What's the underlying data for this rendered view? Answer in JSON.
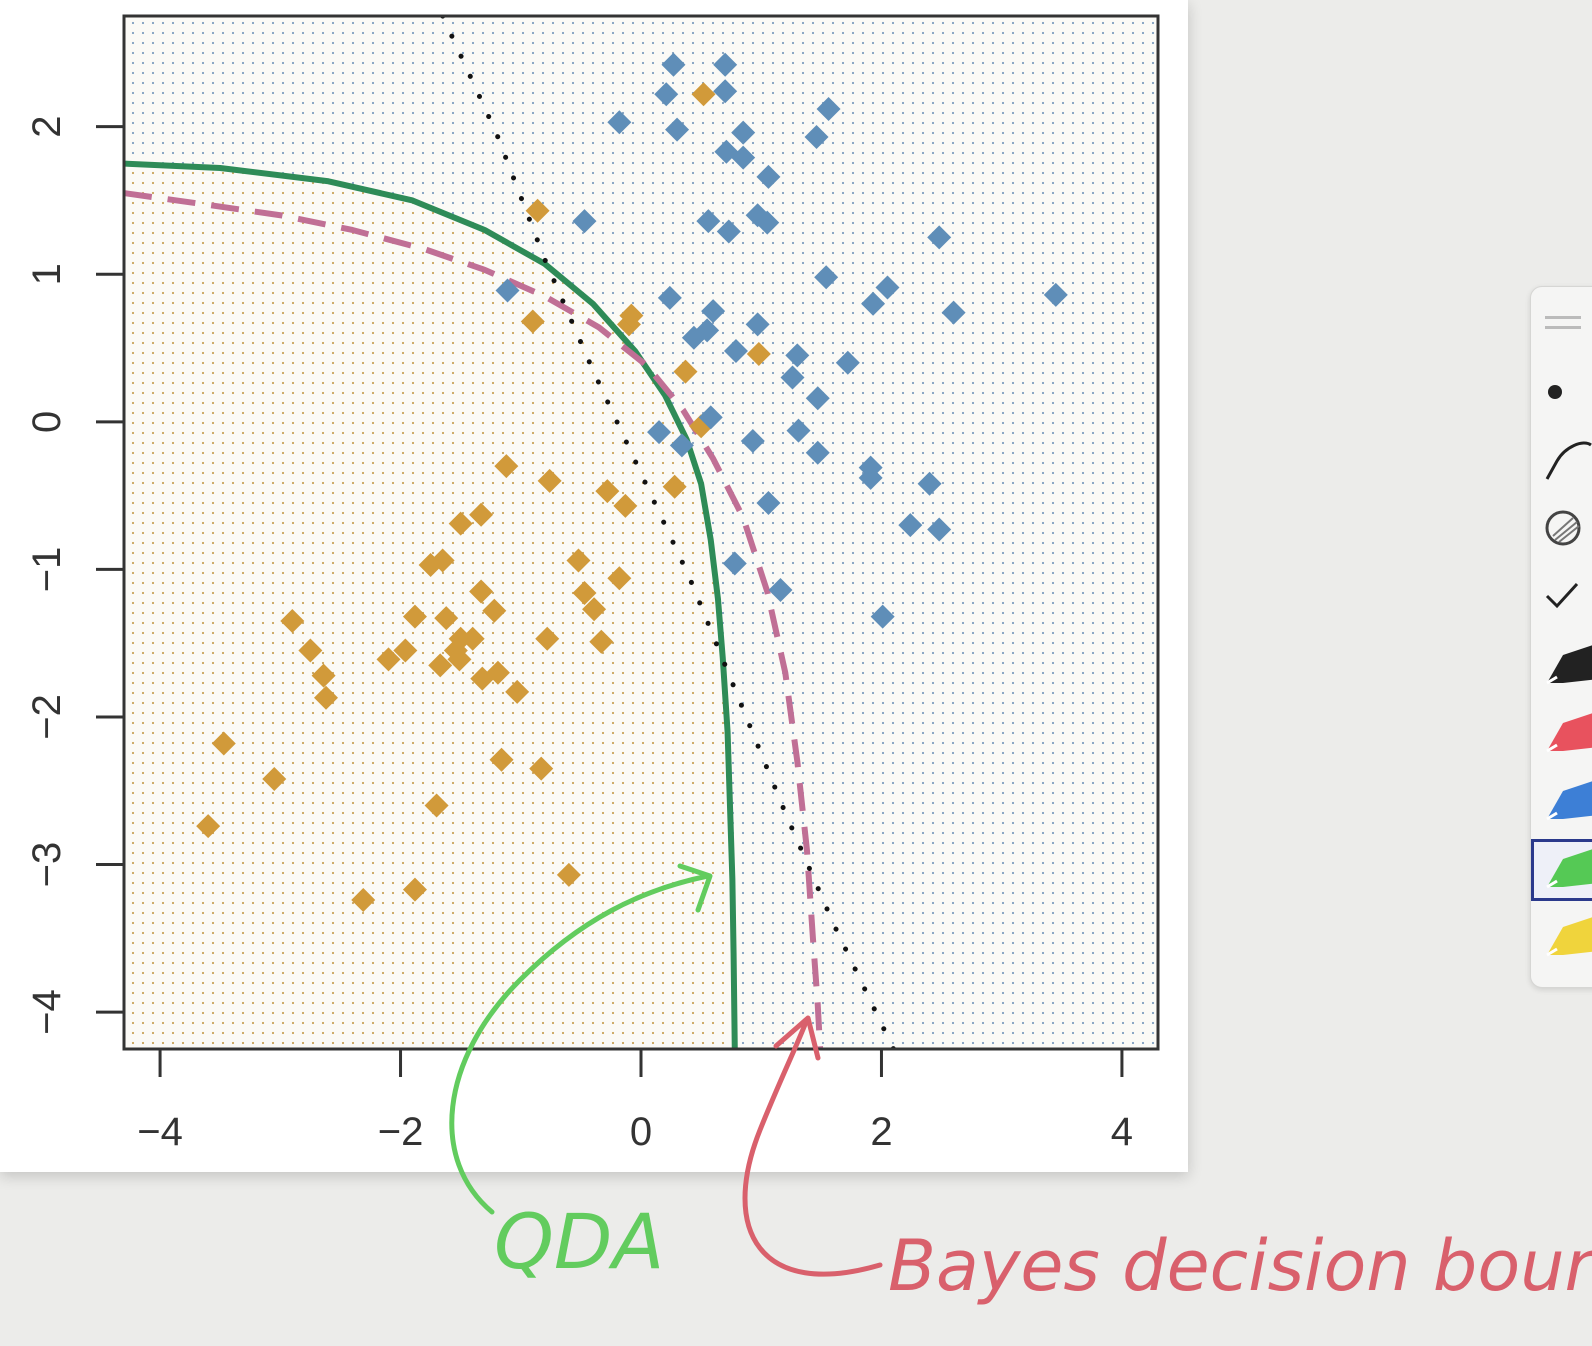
{
  "chart_data": {
    "type": "scatter",
    "title": "",
    "xlabel": "",
    "ylabel": "",
    "xlim": [
      -4.3,
      4.3
    ],
    "ylim": [
      -4.25,
      2.75
    ],
    "x_ticks": [
      -4,
      -2,
      0,
      2,
      4
    ],
    "x_tick_labels": [
      "−4",
      "−2",
      "0",
      "2",
      "4"
    ],
    "y_ticks": [
      -4,
      -3,
      -2,
      -1,
      0,
      1,
      2
    ],
    "y_tick_labels": [
      "−4",
      "−3",
      "−2",
      "−1",
      "0",
      "1",
      "2"
    ],
    "grid": false,
    "background_dot_grid": true,
    "series": [
      {
        "color": "#d19a3a",
        "marker": "diamond",
        "points": [
          [
            0.52,
            2.22
          ],
          [
            -0.86,
            1.43
          ],
          [
            -0.9,
            0.68
          ],
          [
            -0.1,
            0.66
          ],
          [
            -0.08,
            0.72
          ],
          [
            0.98,
            0.46
          ],
          [
            0.37,
            0.34
          ],
          [
            0.5,
            -0.03
          ],
          [
            -1.12,
            -0.3
          ],
          [
            -0.76,
            -0.4
          ],
          [
            -0.28,
            -0.47
          ],
          [
            0.28,
            -0.44
          ],
          [
            -0.13,
            -0.57
          ],
          [
            -1.5,
            -0.69
          ],
          [
            -1.33,
            -0.63
          ],
          [
            -1.75,
            -0.97
          ],
          [
            -1.65,
            -0.94
          ],
          [
            -0.52,
            -0.94
          ],
          [
            -0.18,
            -1.06
          ],
          [
            -0.47,
            -1.16
          ],
          [
            -1.33,
            -1.15
          ],
          [
            -0.39,
            -1.27
          ],
          [
            -1.88,
            -1.32
          ],
          [
            -1.62,
            -1.33
          ],
          [
            -1.22,
            -1.28
          ],
          [
            -2.9,
            -1.35
          ],
          [
            -1.5,
            -1.47
          ],
          [
            -1.4,
            -1.47
          ],
          [
            -1.54,
            -1.55
          ],
          [
            -2.75,
            -1.55
          ],
          [
            -1.96,
            -1.55
          ],
          [
            -0.78,
            -1.47
          ],
          [
            -0.33,
            -1.49
          ],
          [
            -2.1,
            -1.61
          ],
          [
            -1.51,
            -1.61
          ],
          [
            -1.67,
            -1.65
          ],
          [
            -2.64,
            -1.72
          ],
          [
            -1.19,
            -1.7
          ],
          [
            -1.32,
            -1.74
          ],
          [
            -2.62,
            -1.87
          ],
          [
            -1.03,
            -1.83
          ],
          [
            -3.47,
            -2.18
          ],
          [
            -1.16,
            -2.29
          ],
          [
            -0.83,
            -2.35
          ],
          [
            -3.05,
            -2.42
          ],
          [
            -1.7,
            -2.6
          ],
          [
            -3.6,
            -2.74
          ],
          [
            -0.6,
            -3.07
          ],
          [
            -1.88,
            -3.17
          ],
          [
            -2.31,
            -3.24
          ]
        ]
      },
      {
        "color": "#5f8eb8",
        "marker": "diamond",
        "points": [
          [
            0.27,
            2.42
          ],
          [
            0.7,
            2.42
          ],
          [
            0.21,
            2.22
          ],
          [
            0.7,
            2.24
          ],
          [
            1.56,
            2.12
          ],
          [
            -0.18,
            2.03
          ],
          [
            0.3,
            1.98
          ],
          [
            0.85,
            1.96
          ],
          [
            1.46,
            1.93
          ],
          [
            0.71,
            1.83
          ],
          [
            0.85,
            1.79
          ],
          [
            1.06,
            1.66
          ],
          [
            -0.47,
            1.36
          ],
          [
            0.56,
            1.36
          ],
          [
            0.73,
            1.29
          ],
          [
            0.97,
            1.4
          ],
          [
            1.05,
            1.35
          ],
          [
            2.48,
            1.25
          ],
          [
            1.54,
            0.98
          ],
          [
            -1.11,
            0.89
          ],
          [
            2.05,
            0.91
          ],
          [
            3.45,
            0.86
          ],
          [
            0.24,
            0.84
          ],
          [
            1.93,
            0.8
          ],
          [
            0.6,
            0.75
          ],
          [
            2.6,
            0.74
          ],
          [
            0.97,
            0.66
          ],
          [
            0.55,
            0.62
          ],
          [
            0.44,
            0.57
          ],
          [
            0.79,
            0.48
          ],
          [
            1.3,
            0.45
          ],
          [
            1.72,
            0.4
          ],
          [
            1.26,
            0.3
          ],
          [
            1.47,
            0.16
          ],
          [
            0.58,
            0.03
          ],
          [
            0.15,
            -0.07
          ],
          [
            1.31,
            -0.06
          ],
          [
            0.93,
            -0.13
          ],
          [
            0.34,
            -0.16
          ],
          [
            1.47,
            -0.21
          ],
          [
            1.91,
            -0.31
          ],
          [
            1.91,
            -0.38
          ],
          [
            2.4,
            -0.42
          ],
          [
            1.06,
            -0.55
          ],
          [
            2.24,
            -0.7
          ],
          [
            2.48,
            -0.73
          ],
          [
            0.78,
            -0.96
          ],
          [
            1.16,
            -1.14
          ],
          [
            2.01,
            -1.32
          ]
        ]
      }
    ],
    "lines": [
      {
        "color": "#2e8b57",
        "style": "solid",
        "points": [
          [
            -4.3,
            1.75
          ],
          [
            -3.5,
            1.72
          ],
          [
            -2.6,
            1.63
          ],
          [
            -1.9,
            1.5
          ],
          [
            -1.3,
            1.3
          ],
          [
            -0.8,
            1.07
          ],
          [
            -0.4,
            0.8
          ],
          [
            -0.05,
            0.48
          ],
          [
            0.2,
            0.18
          ],
          [
            0.38,
            -0.12
          ],
          [
            0.5,
            -0.42
          ],
          [
            0.58,
            -0.8
          ],
          [
            0.64,
            -1.2
          ],
          [
            0.68,
            -1.6
          ],
          [
            0.72,
            -2.1
          ],
          [
            0.74,
            -2.6
          ],
          [
            0.76,
            -3.1
          ],
          [
            0.77,
            -3.6
          ],
          [
            0.78,
            -4.25
          ]
        ]
      },
      {
        "color": "#c06f95",
        "style": "dashed",
        "points": [
          [
            -4.3,
            1.55
          ],
          [
            -3.6,
            1.47
          ],
          [
            -3.0,
            1.4
          ],
          [
            -2.4,
            1.3
          ],
          [
            -1.8,
            1.17
          ],
          [
            -1.3,
            1.03
          ],
          [
            -0.8,
            0.85
          ],
          [
            -0.35,
            0.64
          ],
          [
            0.05,
            0.38
          ],
          [
            0.35,
            0.08
          ],
          [
            0.6,
            -0.25
          ],
          [
            0.85,
            -0.65
          ],
          [
            1.05,
            -1.15
          ],
          [
            1.2,
            -1.7
          ],
          [
            1.3,
            -2.3
          ],
          [
            1.38,
            -2.9
          ],
          [
            1.43,
            -3.5
          ],
          [
            1.47,
            -3.95
          ],
          [
            1.49,
            -4.25
          ]
        ]
      },
      {
        "color": "#111111",
        "style": "dotted",
        "points": [
          [
            -1.65,
            2.75
          ],
          [
            -1.2,
            1.95
          ],
          [
            -0.8,
            1.1
          ],
          [
            -0.4,
            0.35
          ],
          [
            0.0,
            -0.35
          ],
          [
            0.4,
            -1.05
          ],
          [
            0.8,
            -1.85
          ],
          [
            1.2,
            -2.65
          ],
          [
            1.6,
            -3.4
          ],
          [
            2.1,
            -4.25
          ]
        ]
      }
    ]
  },
  "annotations": {
    "qda_label": "QDA",
    "qda_color": "#62cc5e",
    "bayes_label": "Bayes decision boundary",
    "bayes_color": "#d9606c"
  },
  "toolbar": {
    "tools": [
      {
        "icon": "drag-handle-icon"
      },
      {
        "icon": "dot-icon"
      },
      {
        "icon": "lasso-icon"
      },
      {
        "icon": "eraser-icon"
      },
      {
        "icon": "check-icon"
      },
      {
        "icon": "pen-icon",
        "color": "#222222"
      },
      {
        "icon": "pen-icon",
        "color": "#e8525e"
      },
      {
        "icon": "pen-icon",
        "color": "#3d7fd6"
      },
      {
        "icon": "pen-icon",
        "color": "#55c955",
        "selected": true
      },
      {
        "icon": "pen-icon",
        "color": "#f0d43c"
      }
    ]
  }
}
